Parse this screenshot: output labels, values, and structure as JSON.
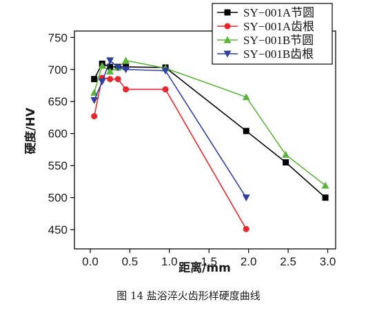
{
  "caption": "图 14  盐浴淬火齿形样硬度曲线",
  "chart_data": {
    "type": "line",
    "title": "",
    "xlabel": "距离/mm",
    "ylabel": "硬度/HV",
    "xlim": [
      -0.2,
      3.1
    ],
    "ylim": [
      420,
      760
    ],
    "xticks": [
      0.0,
      0.5,
      1.0,
      1.5,
      2.0,
      2.5,
      3.0
    ],
    "xtick_labels": [
      "0.0",
      "0.5",
      "1.0",
      "1.5",
      "2.0",
      "2.5",
      "3.0"
    ],
    "yticks": [
      450,
      500,
      550,
      600,
      650,
      700,
      750
    ],
    "ytick_labels": [
      "450",
      "500",
      "550",
      "600",
      "650",
      "700",
      "750"
    ],
    "grid": false,
    "legend_position": "top-right",
    "series": [
      {
        "name": "SY−001A节圆",
        "color": "#000000",
        "marker": "square",
        "x": [
          0.05,
          0.15,
          0.25,
          0.35,
          0.45,
          0.95,
          1.97,
          2.47,
          2.97
        ],
        "y": [
          685,
          709,
          704,
          704,
          704,
          703,
          604,
          555,
          500
        ]
      },
      {
        "name": "SY−001A齿根",
        "color": "#e8282d",
        "marker": "circle",
        "x": [
          0.05,
          0.15,
          0.25,
          0.35,
          0.45,
          0.95,
          1.97
        ],
        "y": [
          627,
          687,
          685,
          685,
          669,
          669,
          451
        ]
      },
      {
        "name": "SY−001B节圆",
        "color": "#5ab53a",
        "marker": "triangle-up",
        "x": [
          0.05,
          0.15,
          0.25,
          0.35,
          0.45,
          0.95,
          1.97,
          2.47,
          2.97
        ],
        "y": [
          664,
          706,
          697,
          703,
          714,
          702,
          657,
          567,
          519
        ]
      },
      {
        "name": "SY−001B齿根",
        "color": "#2f3f9f",
        "marker": "triangle-down",
        "x": [
          0.05,
          0.15,
          0.25,
          0.35,
          0.45,
          0.95,
          1.97
        ],
        "y": [
          652,
          681,
          714,
          703,
          700,
          698,
          500
        ]
      }
    ]
  }
}
